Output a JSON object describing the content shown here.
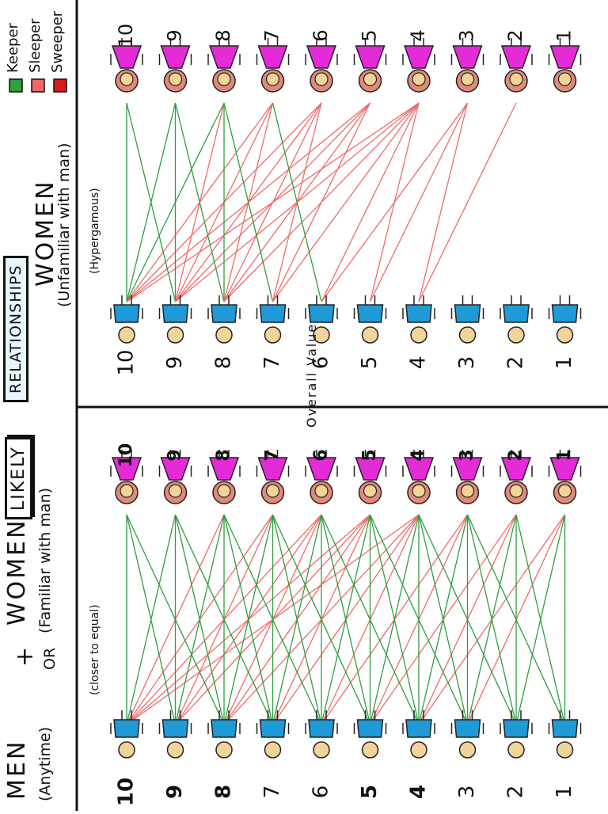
{
  "title": {
    "likely": "LIKELY",
    "relationships": "RELATIONSHIPS"
  },
  "left_panel": {
    "men_label": "MEN",
    "men_sub": "(Anytime)",
    "plus": "+",
    "or": "OR",
    "women_label": "WOMEN",
    "women_sub": "(Familiar with man)",
    "note": "(closer to equal)"
  },
  "right_panel": {
    "women_label": "WOMEN",
    "women_sub": "(Unfamiliar with man)",
    "note": "(Hypergamous)"
  },
  "overall_label": "Overall Value",
  "legend": [
    {
      "label": "Keeper",
      "color": "#2e9e3e"
    },
    {
      "label": "Sleeper",
      "color": "#f06a6a"
    },
    {
      "label": "Sweeper",
      "color": "#d91a1a"
    }
  ],
  "ranks": [
    "10",
    "9",
    "8",
    "7",
    "6",
    "5",
    "4",
    "3",
    "2",
    "1"
  ],
  "colors": {
    "man_shirt": "#1f9ad6",
    "woman_dress": "#e52ad8",
    "woman_hair": "#e08a78",
    "skin": "#f2d49b",
    "keeper": "#2e9e3e",
    "sleeper": "#f06a6a"
  },
  "links_left": [
    {
      "man": 10,
      "woman": 10,
      "type": "keeper"
    },
    {
      "man": 10,
      "woman": 9,
      "type": "keeper"
    },
    {
      "man": 10,
      "woman": 8,
      "type": "sleeper"
    },
    {
      "man": 10,
      "woman": 7,
      "type": "sleeper"
    },
    {
      "man": 10,
      "woman": 6,
      "type": "sleeper"
    },
    {
      "man": 10,
      "woman": 5,
      "type": "sleeper"
    },
    {
      "man": 10,
      "woman": 4,
      "type": "sleeper"
    },
    {
      "man": 9,
      "woman": 10,
      "type": "keeper"
    },
    {
      "man": 9,
      "woman": 9,
      "type": "keeper"
    },
    {
      "man": 9,
      "woman": 8,
      "type": "keeper"
    },
    {
      "man": 9,
      "woman": 7,
      "type": "sleeper"
    },
    {
      "man": 9,
      "woman": 6,
      "type": "sleeper"
    },
    {
      "man": 9,
      "woman": 5,
      "type": "sleeper"
    },
    {
      "man": 8,
      "woman": 10,
      "type": "keeper"
    },
    {
      "man": 8,
      "woman": 9,
      "type": "keeper"
    },
    {
      "man": 8,
      "woman": 8,
      "type": "keeper"
    },
    {
      "man": 8,
      "woman": 7,
      "type": "keeper"
    },
    {
      "man": 8,
      "woman": 6,
      "type": "sleeper"
    },
    {
      "man": 8,
      "woman": 5,
      "type": "sleeper"
    },
    {
      "man": 8,
      "woman": 4,
      "type": "sleeper"
    },
    {
      "man": 7,
      "woman": 9,
      "type": "keeper"
    },
    {
      "man": 7,
      "woman": 8,
      "type": "keeper"
    },
    {
      "man": 7,
      "woman": 7,
      "type": "keeper"
    },
    {
      "man": 7,
      "woman": 6,
      "type": "keeper"
    },
    {
      "man": 7,
      "woman": 5,
      "type": "sleeper"
    },
    {
      "man": 7,
      "woman": 4,
      "type": "sleeper"
    },
    {
      "man": 6,
      "woman": 8,
      "type": "keeper"
    },
    {
      "man": 6,
      "woman": 7,
      "type": "keeper"
    },
    {
      "man": 6,
      "woman": 6,
      "type": "keeper"
    },
    {
      "man": 6,
      "woman": 5,
      "type": "keeper"
    },
    {
      "man": 6,
      "woman": 4,
      "type": "sleeper"
    },
    {
      "man": 6,
      "woman": 3,
      "type": "sleeper"
    },
    {
      "man": 5,
      "woman": 7,
      "type": "keeper"
    },
    {
      "man": 5,
      "woman": 6,
      "type": "keeper"
    },
    {
      "man": 5,
      "woman": 5,
      "type": "keeper"
    },
    {
      "man": 5,
      "woman": 4,
      "type": "keeper"
    },
    {
      "man": 5,
      "woman": 3,
      "type": "sleeper"
    },
    {
      "man": 5,
      "woman": 2,
      "type": "sleeper"
    },
    {
      "man": 4,
      "woman": 6,
      "type": "keeper"
    },
    {
      "man": 4,
      "woman": 5,
      "type": "keeper"
    },
    {
      "man": 4,
      "woman": 4,
      "type": "keeper"
    },
    {
      "man": 4,
      "woman": 3,
      "type": "keeper"
    },
    {
      "man": 4,
      "woman": 2,
      "type": "sleeper"
    },
    {
      "man": 4,
      "woman": 1,
      "type": "sleeper"
    },
    {
      "man": 3,
      "woman": 5,
      "type": "keeper"
    },
    {
      "man": 3,
      "woman": 4,
      "type": "keeper"
    },
    {
      "man": 3,
      "woman": 3,
      "type": "keeper"
    },
    {
      "man": 3,
      "woman": 2,
      "type": "keeper"
    },
    {
      "man": 3,
      "woman": 1,
      "type": "sleeper"
    },
    {
      "man": 2,
      "woman": 4,
      "type": "keeper"
    },
    {
      "man": 2,
      "woman": 3,
      "type": "keeper"
    },
    {
      "man": 2,
      "woman": 2,
      "type": "keeper"
    },
    {
      "man": 2,
      "woman": 1,
      "type": "keeper"
    },
    {
      "man": 1,
      "woman": 3,
      "type": "keeper"
    },
    {
      "man": 1,
      "woman": 2,
      "type": "keeper"
    },
    {
      "man": 1,
      "woman": 1,
      "type": "keeper"
    }
  ],
  "links_right": [
    {
      "man": 10,
      "woman": 10,
      "type": "keeper"
    },
    {
      "man": 10,
      "woman": 9,
      "type": "keeper"
    },
    {
      "man": 10,
      "woman": 8,
      "type": "keeper"
    },
    {
      "man": 10,
      "woman": 7,
      "type": "sleeper"
    },
    {
      "man": 10,
      "woman": 6,
      "type": "sleeper"
    },
    {
      "man": 10,
      "woman": 5,
      "type": "sleeper"
    },
    {
      "man": 10,
      "woman": 4,
      "type": "sleeper"
    },
    {
      "man": 9,
      "woman": 10,
      "type": "keeper"
    },
    {
      "man": 9,
      "woman": 9,
      "type": "keeper"
    },
    {
      "man": 9,
      "woman": 8,
      "type": "sleeper"
    },
    {
      "man": 9,
      "woman": 7,
      "type": "sleeper"
    },
    {
      "man": 9,
      "woman": 6,
      "type": "sleeper"
    },
    {
      "man": 9,
      "woman": 5,
      "type": "sleeper"
    },
    {
      "man": 9,
      "woman": 4,
      "type": "sleeper"
    },
    {
      "man": 8,
      "woman": 9,
      "type": "keeper"
    },
    {
      "man": 8,
      "woman": 8,
      "type": "keeper"
    },
    {
      "man": 8,
      "woman": 7,
      "type": "sleeper"
    },
    {
      "man": 8,
      "woman": 6,
      "type": "sleeper"
    },
    {
      "man": 8,
      "woman": 5,
      "type": "sleeper"
    },
    {
      "man": 8,
      "woman": 4,
      "type": "sleeper"
    },
    {
      "man": 7,
      "woman": 8,
      "type": "keeper"
    },
    {
      "man": 7,
      "woman": 6,
      "type": "sleeper"
    },
    {
      "man": 7,
      "woman": 5,
      "type": "sleeper"
    },
    {
      "man": 7,
      "woman": 4,
      "type": "sleeper"
    },
    {
      "man": 6,
      "woman": 7,
      "type": "keeper"
    },
    {
      "man": 6,
      "woman": 4,
      "type": "sleeper"
    },
    {
      "man": 6,
      "woman": 3,
      "type": "sleeper"
    },
    {
      "man": 5,
      "woman": 4,
      "type": "sleeper"
    },
    {
      "man": 5,
      "woman": 3,
      "type": "sleeper"
    },
    {
      "man": 4,
      "woman": 3,
      "type": "sleeper"
    },
    {
      "man": 4,
      "woman": 2,
      "type": "sleeper"
    }
  ]
}
